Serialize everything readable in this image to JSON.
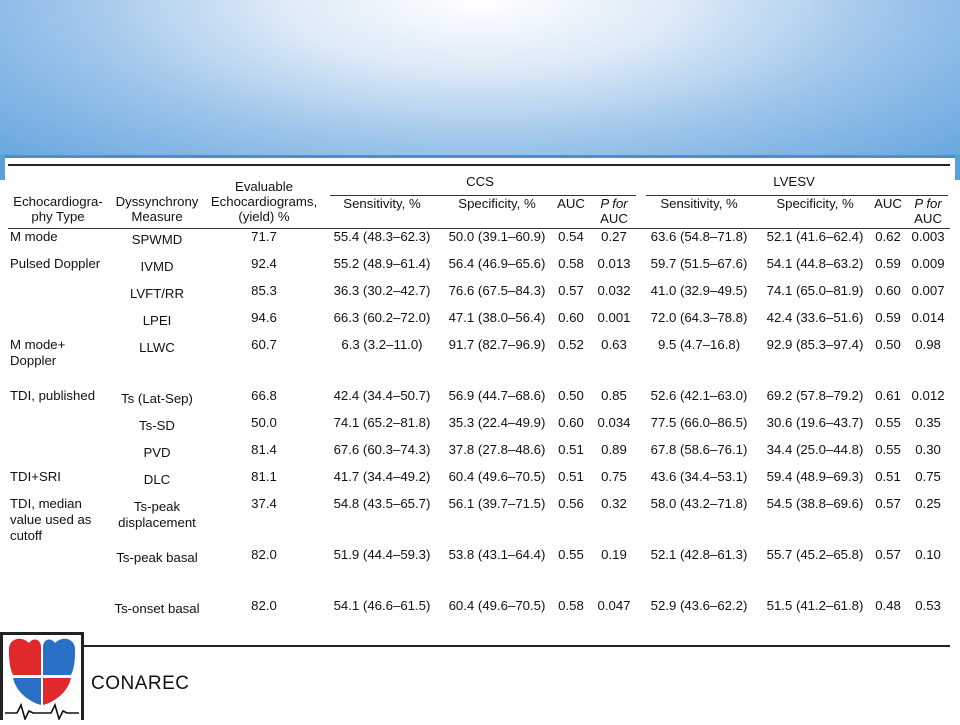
{
  "brand": "CONAREC",
  "colors": {
    "banner": "#5a9fdc",
    "logo_red": "#e0282d",
    "logo_blue": "#2a6fc6"
  },
  "table": {
    "headers": {
      "echo_type": [
        "Echocardiogra-",
        "phy Type"
      ],
      "measure": [
        "Dyssynchrony",
        "Measure"
      ],
      "evaluable": [
        "Evaluable",
        "Echocardiograms,",
        "(yield) %"
      ],
      "ccs_group": "CCS",
      "lvesv_group": "LVESV",
      "sensitivity": "Sensitivity, %",
      "specificity": "Specificity, %",
      "auc": "AUC",
      "p_for": "P for",
      "p_auc": "AUC"
    },
    "rows": [
      {
        "type": "M mode",
        "measure": "SPWMD",
        "yield": "71.7",
        "ccs_sens": "55.4 (48.3–62.3)",
        "ccs_spec": "50.0 (39.1–60.9)",
        "ccs_auc": "0.54",
        "ccs_p": "0.27",
        "lv_sens": "63.6 (54.8–71.8)",
        "lv_spec": "52.1 (41.6–62.4)",
        "lv_auc": "0.62",
        "lv_p": "0.003"
      },
      {
        "type": "Pulsed Doppler",
        "measure": "IVMD",
        "yield": "92.4",
        "ccs_sens": "55.2 (48.9–61.4)",
        "ccs_spec": "56.4 (46.9–65.6)",
        "ccs_auc": "0.58",
        "ccs_p": "0.013",
        "lv_sens": "59.7 (51.5–67.6)",
        "lv_spec": "54.1 (44.8–63.2)",
        "lv_auc": "0.59",
        "lv_p": "0.009"
      },
      {
        "type": "",
        "measure": "LVFT/RR",
        "yield": "85.3",
        "ccs_sens": "36.3 (30.2–42.7)",
        "ccs_spec": "76.6 (67.5–84.3)",
        "ccs_auc": "0.57",
        "ccs_p": "0.032",
        "lv_sens": "41.0 (32.9–49.5)",
        "lv_spec": "74.1 (65.0–81.9)",
        "lv_auc": "0.60",
        "lv_p": "0.007"
      },
      {
        "type": "",
        "measure": "LPEI",
        "yield": "94.6",
        "ccs_sens": "66.3 (60.2–72.0)",
        "ccs_spec": "47.1 (38.0–56.4)",
        "ccs_auc": "0.60",
        "ccs_p": "0.001",
        "lv_sens": "72.0 (64.3–78.8)",
        "lv_spec": "42.4 (33.6–51.6)",
        "lv_auc": "0.59",
        "lv_p": "0.014"
      },
      {
        "type": "M mode+ Doppler",
        "measure": "LLWC",
        "yield": "60.7",
        "ccs_sens": "6.3 (3.2–11.0)",
        "ccs_spec": "91.7 (82.7–96.9)",
        "ccs_auc": "0.52",
        "ccs_p": "0.63",
        "lv_sens": "9.5 (4.7–16.8)",
        "lv_spec": "92.9 (85.3–97.4)",
        "lv_auc": "0.50",
        "lv_p": "0.98"
      },
      {
        "type": "TDI, published",
        "measure": "Ts (Lat-Sep)",
        "yield": "66.8",
        "ccs_sens": "42.4 (34.4–50.7)",
        "ccs_spec": "56.9 (44.7–68.6)",
        "ccs_auc": "0.50",
        "ccs_p": "0.85",
        "lv_sens": "52.6 (42.1–63.0)",
        "lv_spec": "69.2 (57.8–79.2)",
        "lv_auc": "0.61",
        "lv_p": "0.012"
      },
      {
        "type": "",
        "measure": "Ts-SD",
        "yield": "50.0",
        "ccs_sens": "74.1 (65.2–81.8)",
        "ccs_spec": "35.3 (22.4–49.9)",
        "ccs_auc": "0.60",
        "ccs_p": "0.034",
        "lv_sens": "77.5 (66.0–86.5)",
        "lv_spec": "30.6 (19.6–43.7)",
        "lv_auc": "0.55",
        "lv_p": "0.35"
      },
      {
        "type": "",
        "measure": "PVD",
        "yield": "81.4",
        "ccs_sens": "67.6 (60.3–74.3)",
        "ccs_spec": "37.8 (27.8–48.6)",
        "ccs_auc": "0.51",
        "ccs_p": "0.89",
        "lv_sens": "67.8 (58.6–76.1)",
        "lv_spec": "34.4 (25.0–44.8)",
        "lv_auc": "0.55",
        "lv_p": "0.30"
      },
      {
        "type": "TDI+SRI",
        "measure": "DLC",
        "yield": "81.1",
        "ccs_sens": "41.7 (34.4–49.2)",
        "ccs_spec": "60.4 (49.6–70.5)",
        "ccs_auc": "0.51",
        "ccs_p": "0.75",
        "lv_sens": "43.6 (34.4–53.1)",
        "lv_spec": "59.4 (48.9–69.3)",
        "lv_auc": "0.51",
        "lv_p": "0.75"
      },
      {
        "type": "TDI, median value used as cutoff",
        "measure": "Ts-peak displacement",
        "yield": "37.4",
        "ccs_sens": "54.8 (43.5–65.7)",
        "ccs_spec": "56.1 (39.7–71.5)",
        "ccs_auc": "0.56",
        "ccs_p": "0.32",
        "lv_sens": "58.0 (43.2–71.8)",
        "lv_spec": "54.5 (38.8–69.6)",
        "lv_auc": "0.57",
        "lv_p": "0.25"
      },
      {
        "type": "",
        "measure": "Ts-peak basal",
        "yield": "82.0",
        "ccs_sens": "51.9 (44.4–59.3)",
        "ccs_spec": "53.8 (43.1–64.4)",
        "ccs_auc": "0.55",
        "ccs_p": "0.19",
        "lv_sens": "52.1 (42.8–61.3)",
        "lv_spec": "55.7 (45.2–65.8)",
        "lv_auc": "0.57",
        "lv_p": "0.10"
      },
      {
        "type": "",
        "measure": "Ts-onset basal",
        "yield": "82.0",
        "ccs_sens": "54.1 (46.6–61.5)",
        "ccs_spec": "60.4 (49.6–70.5)",
        "ccs_auc": "0.58",
        "ccs_p": "0.047",
        "lv_sens": "52.9 (43.6–62.2)",
        "lv_spec": "51.5 (41.2–61.8)",
        "lv_auc": "0.48",
        "lv_p": "0.53"
      }
    ]
  }
}
